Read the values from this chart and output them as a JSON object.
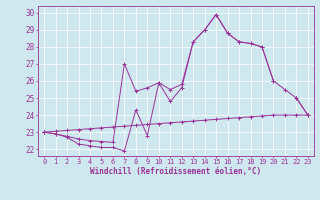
{
  "xlabel": "Windchill (Refroidissement éolien,°C)",
  "x_values": [
    0,
    1,
    2,
    3,
    4,
    5,
    6,
    7,
    8,
    9,
    10,
    11,
    12,
    13,
    14,
    15,
    16,
    17,
    18,
    19,
    20,
    21,
    22,
    23
  ],
  "line1_y": [
    23.0,
    22.9,
    22.7,
    22.3,
    22.2,
    22.1,
    22.1,
    21.9,
    24.3,
    22.8,
    25.9,
    24.8,
    25.6,
    28.3,
    29.0,
    29.9,
    28.8,
    28.3,
    28.2,
    28.0,
    26.0,
    null,
    25.0,
    24.0
  ],
  "line2_y": [
    23.0,
    22.9,
    22.75,
    22.6,
    22.5,
    22.45,
    22.4,
    27.0,
    25.4,
    25.6,
    25.9,
    25.5,
    25.8,
    28.3,
    29.0,
    29.9,
    28.8,
    28.3,
    28.2,
    28.0,
    26.0,
    25.5,
    25.0,
    24.0
  ],
  "line3_y": [
    23.0,
    23.05,
    23.1,
    23.15,
    23.2,
    23.25,
    23.3,
    23.35,
    23.4,
    23.45,
    23.5,
    23.55,
    23.6,
    23.65,
    23.7,
    23.75,
    23.8,
    23.85,
    23.9,
    23.95,
    24.0,
    24.0,
    24.0,
    24.0
  ],
  "ylim": [
    21.6,
    30.4
  ],
  "xlim": [
    -0.5,
    23.5
  ],
  "yticks": [
    22,
    23,
    24,
    25,
    26,
    27,
    28,
    29,
    30
  ],
  "xticks": [
    0,
    1,
    2,
    3,
    4,
    5,
    6,
    7,
    8,
    9,
    10,
    11,
    12,
    13,
    14,
    15,
    16,
    17,
    18,
    19,
    20,
    21,
    22,
    23
  ],
  "line_color": "#993399",
  "bg_color": "#cfe8ef",
  "grid_color": "#ffffff",
  "tick_label_fontsize": 5.0,
  "xlabel_fontsize": 5.5
}
